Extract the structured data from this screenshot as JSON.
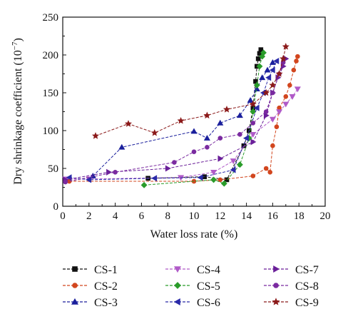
{
  "chart_data": {
    "type": "line",
    "title": "",
    "xlabel": "Water loss rate (%)",
    "ylabel": "Dry shrinkage coefficient (10",
    "ylabel_exponent": "−7",
    "ylabel_suffix": ")",
    "xlim": [
      0,
      20
    ],
    "ylim": [
      0,
      250
    ],
    "xticks": [
      "0",
      "2",
      "4",
      "6",
      "8",
      "10",
      "12",
      "14",
      "16",
      "18",
      "20"
    ],
    "yticks": [
      "0",
      "50",
      "100",
      "150",
      "200",
      "250"
    ],
    "grid": false,
    "legend_position": "bottom",
    "series": [
      {
        "name": "CS-1",
        "color": "#111111",
        "marker": "square",
        "x": [
          6.5,
          10.8,
          12.5,
          13.8,
          14.2,
          14.5,
          14.7,
          14.8,
          14.9,
          15.0,
          15.1
        ],
        "y": [
          37,
          39,
          35,
          80,
          100,
          130,
          165,
          185,
          195,
          202,
          207
        ]
      },
      {
        "name": "CS-2",
        "color": "#d2461e",
        "marker": "circle",
        "x": [
          0.5,
          10.0,
          12.0,
          14.5,
          15.5,
          15.8,
          16.0,
          16.3,
          16.5,
          17.0,
          17.3,
          17.6,
          17.8,
          17.9
        ],
        "y": [
          33,
          33,
          35,
          40,
          50,
          45,
          80,
          105,
          130,
          145,
          160,
          180,
          192,
          198
        ]
      },
      {
        "name": "CS-3",
        "color": "#1a1f9c",
        "marker": "triangle-up",
        "x": [
          2.3,
          4.5,
          10.0,
          11.0,
          12.0,
          13.5,
          14.3,
          14.8,
          15.2,
          15.6,
          16.0
        ],
        "y": [
          40,
          78,
          99,
          90,
          110,
          120,
          140,
          155,
          170,
          180,
          190
        ]
      },
      {
        "name": "CS-4",
        "color": "#b05ac8",
        "marker": "triangle-down",
        "x": [
          0.2,
          2.0,
          9.0,
          11.5,
          13.0,
          14.5,
          16.0,
          16.5,
          17.0,
          17.5,
          17.9
        ],
        "y": [
          36,
          36,
          38,
          45,
          60,
          95,
          115,
          125,
          135,
          145,
          155
        ]
      },
      {
        "name": "CS-5",
        "color": "#2a9c2a",
        "marker": "diamond",
        "x": [
          6.2,
          11.5,
          12.3,
          13.5,
          14.2,
          14.5,
          14.8,
          15.0,
          15.2,
          15.3
        ],
        "y": [
          28,
          35,
          30,
          55,
          90,
          125,
          160,
          185,
          198,
          203
        ]
      },
      {
        "name": "CS-6",
        "color": "#2a2aa8",
        "marker": "triangle-left",
        "x": [
          0.5,
          2.0,
          7.0,
          10.5,
          13.0,
          14.0,
          14.8,
          15.3,
          15.7,
          16.0,
          16.3
        ],
        "y": [
          38,
          35,
          37,
          38,
          48,
          90,
          130,
          150,
          170,
          180,
          192
        ]
      },
      {
        "name": "CS-7",
        "color": "#6a1f99",
        "marker": "triangle-right",
        "x": [
          0.2,
          3.5,
          8.0,
          12.0,
          14.5,
          15.5,
          16.0,
          16.4,
          16.8,
          17.0
        ],
        "y": [
          35,
          45,
          50,
          63,
          85,
          120,
          150,
          170,
          185,
          195
        ]
      },
      {
        "name": "CS-8",
        "color": "#7a2aa0",
        "marker": "circle",
        "x": [
          0.2,
          4.0,
          8.5,
          10.0,
          11.0,
          12.0,
          13.5,
          14.5,
          15.5,
          16.0,
          16.5,
          16.8
        ],
        "y": [
          32,
          45,
          58,
          72,
          78,
          90,
          95,
          110,
          125,
          150,
          175,
          190
        ]
      },
      {
        "name": "CS-9",
        "color": "#8b1a1a",
        "marker": "star",
        "x": [
          2.5,
          5.0,
          7.0,
          9.0,
          11.0,
          12.5,
          14.5,
          15.5,
          16.0,
          16.5,
          16.8,
          17.0
        ],
        "y": [
          93,
          109,
          97,
          113,
          120,
          128,
          135,
          150,
          160,
          175,
          195,
          211
        ]
      }
    ]
  }
}
